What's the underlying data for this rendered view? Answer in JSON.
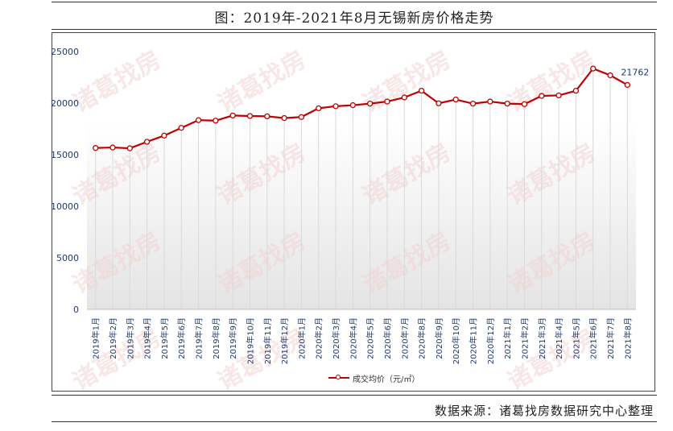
{
  "title": "图：2019年-2021年8月无锡新房价格走势",
  "source": "数据来源：诸葛找房数据研究中心整理",
  "watermark": "诸葛找房",
  "colors": {
    "line": "#c00000",
    "tick": "#1f3a6e",
    "grid": "#d9d9d9"
  },
  "chart_data": {
    "type": "line",
    "title": "",
    "xlabel": "",
    "ylabel": "",
    "ylim": [
      0,
      25000
    ],
    "yticks": [
      0,
      5000,
      10000,
      15000,
      20000,
      25000
    ],
    "grid": true,
    "legend_position": "bottom",
    "categories": [
      "2019年1月",
      "2019年2月",
      "2019年3月",
      "2019年4月",
      "2019年5月",
      "2019年6月",
      "2019年7月",
      "2019年8月",
      "2019年9月",
      "2019年10月",
      "2019年11月",
      "2019年12月",
      "2020年1月",
      "2020年2月",
      "2020年3月",
      "2020年4月",
      "2020年5月",
      "2020年6月",
      "2020年7月",
      "2020年8月",
      "2020年9月",
      "2020年10月",
      "2020年11月",
      "2020年12月",
      "2021年1月",
      "2021年2月",
      "2021年3月",
      "2021年4月",
      "2021年5月",
      "2021年6月",
      "2021年7月",
      "2021年8月"
    ],
    "series": [
      {
        "name": "成交均价（元/㎡）",
        "values": [
          15650,
          15700,
          15620,
          16250,
          16850,
          17600,
          18350,
          18300,
          18800,
          18750,
          18720,
          18550,
          18650,
          19500,
          19700,
          19800,
          19950,
          20150,
          20550,
          21200,
          19980,
          20350,
          19950,
          20150,
          19950,
          19900,
          20700,
          20750,
          21200,
          23350,
          22700,
          21762
        ]
      }
    ],
    "data_labels": [
      {
        "index": 31,
        "text": "21762"
      }
    ]
  }
}
